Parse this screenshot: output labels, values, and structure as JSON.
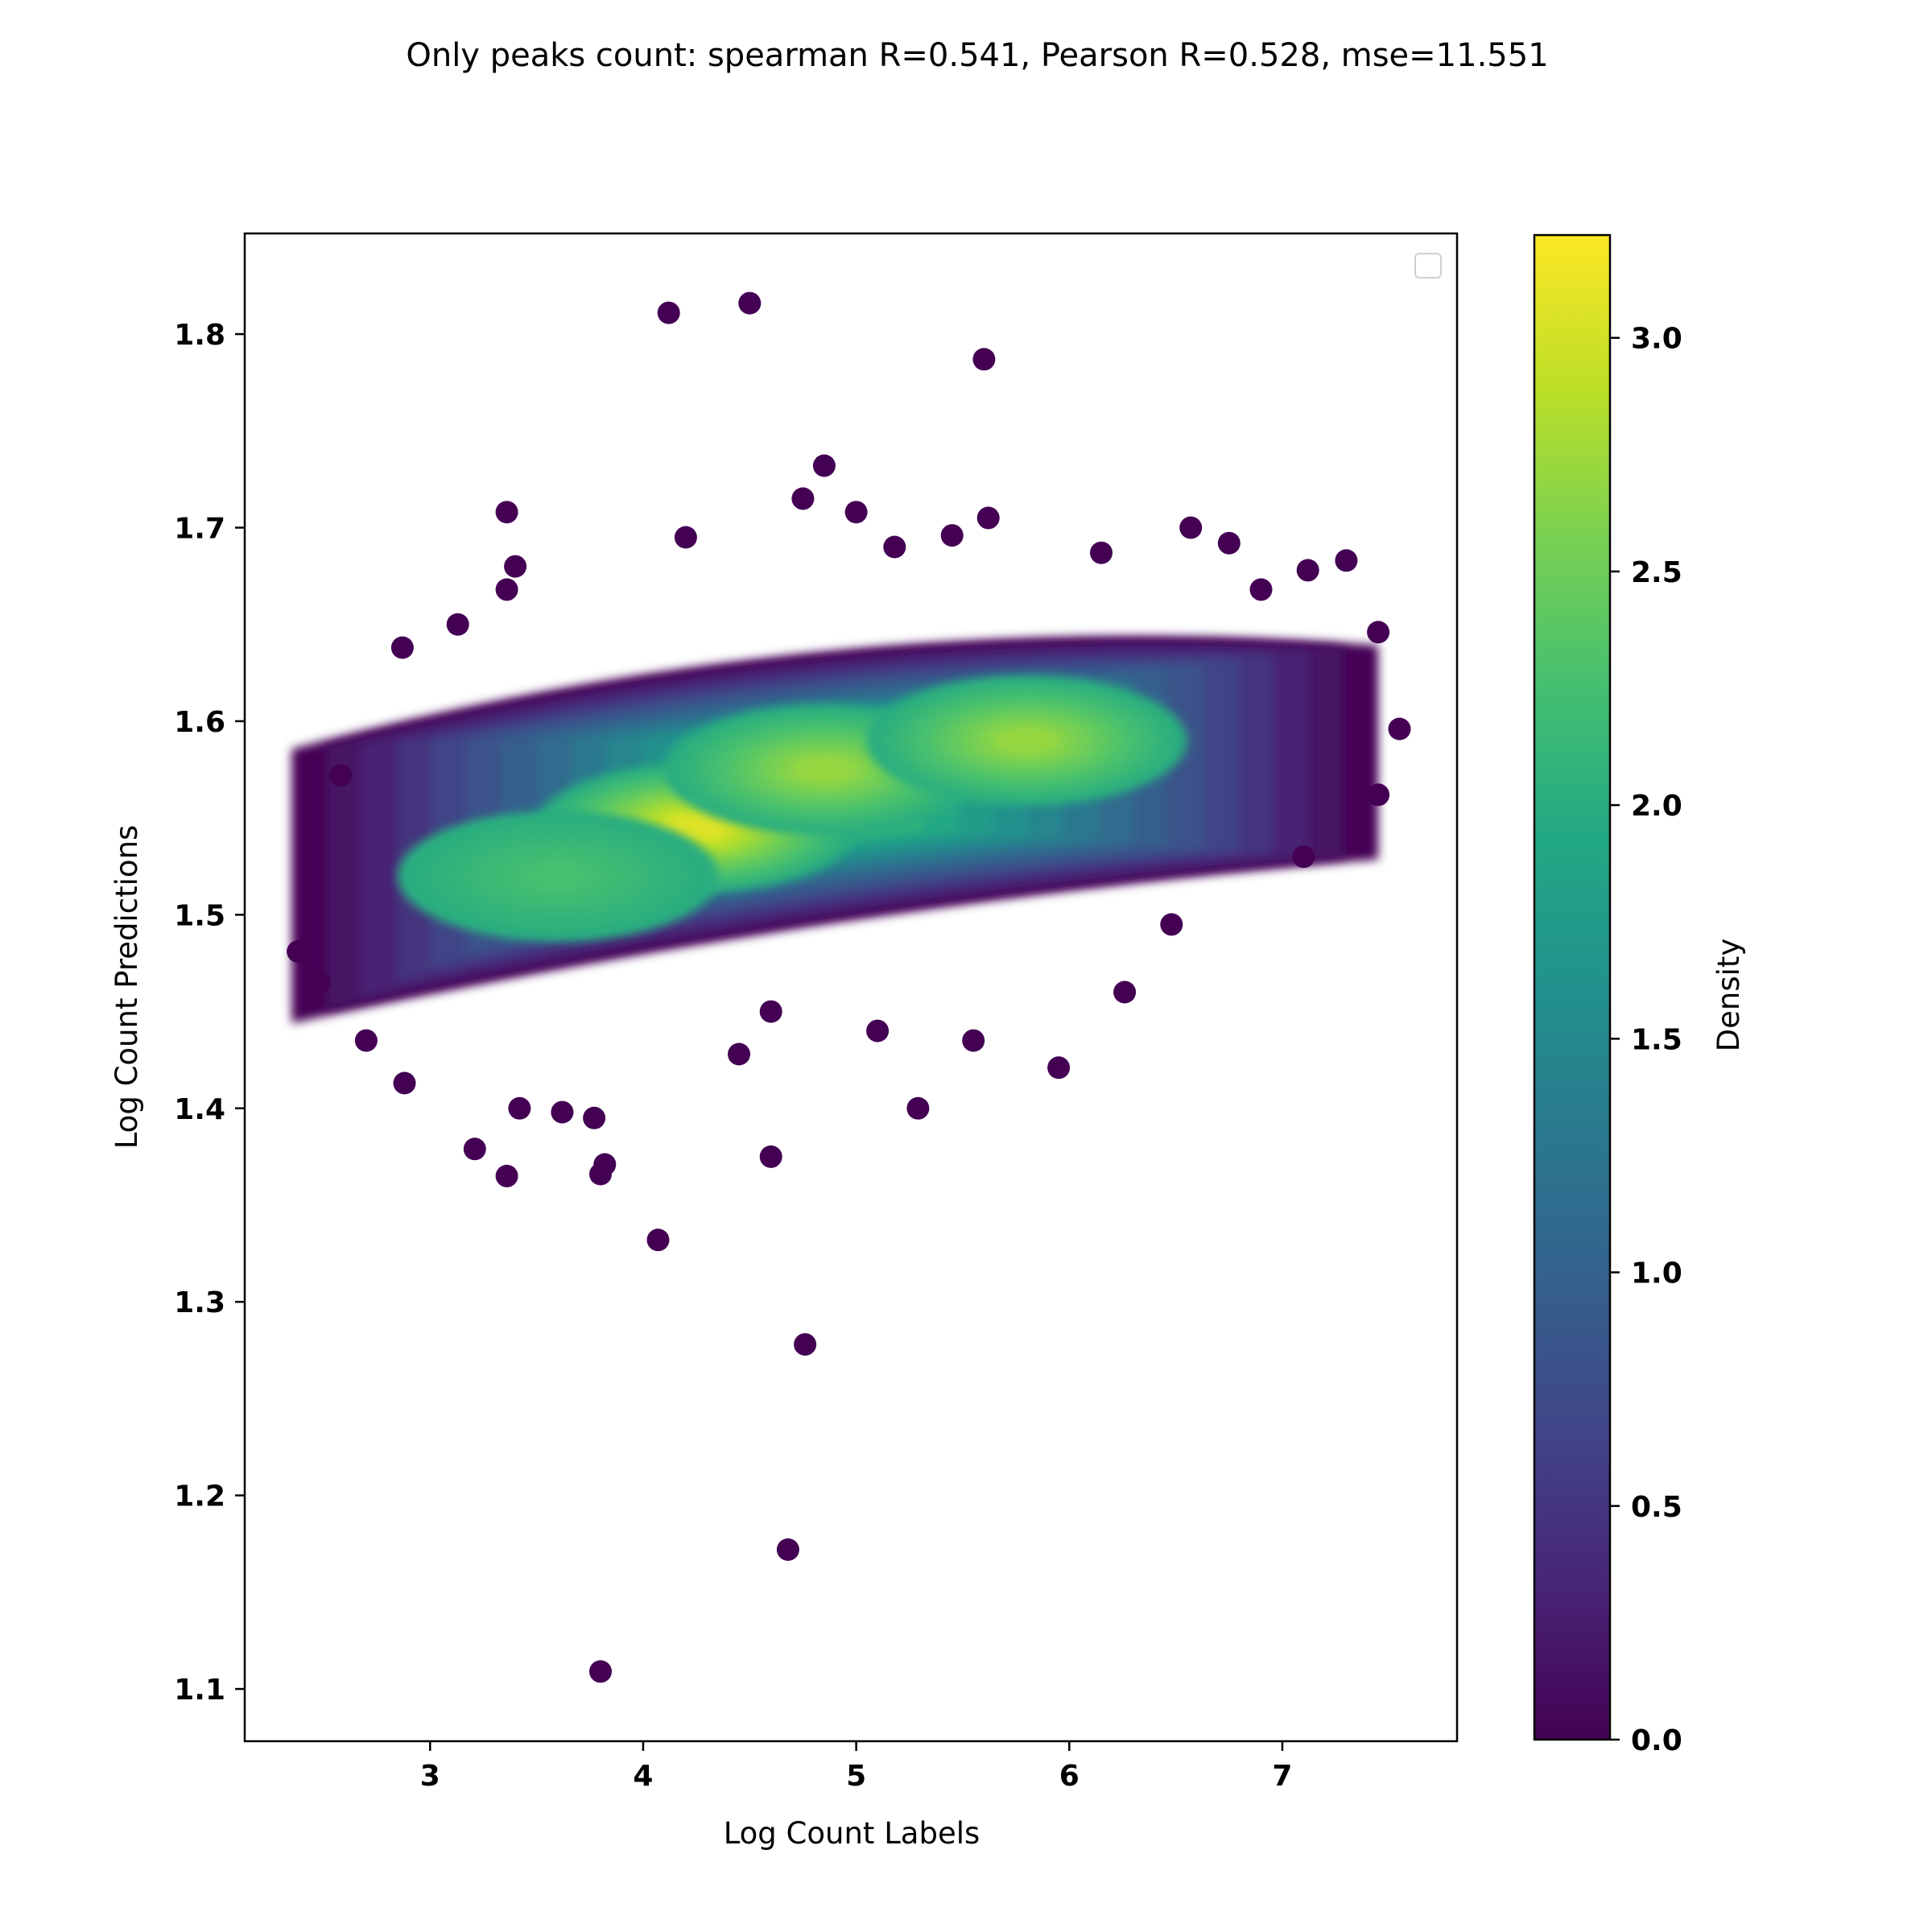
{
  "chart_data": {
    "type": "scatter",
    "title": "Only peaks count: spearman R=0.541, Pearson R=0.528, mse=11.551",
    "xlabel": "Log Count Labels",
    "ylabel": "Log Count Predictions",
    "xlim": [
      2.13,
      7.82
    ],
    "ylim": [
      1.073,
      1.852
    ],
    "x_ticks": [
      3,
      4,
      5,
      6,
      7
    ],
    "y_ticks": [
      1.1,
      1.2,
      1.3,
      1.4,
      1.5,
      1.6,
      1.7,
      1.8
    ],
    "x_tick_labels": [
      "3",
      "4",
      "5",
      "6",
      "7"
    ],
    "y_tick_labels": [
      "1.1",
      "1.2",
      "1.3",
      "1.4",
      "1.5",
      "1.6",
      "1.7",
      "1.8"
    ],
    "grid": false,
    "legend": "top-right",
    "legend_entries": [],
    "colorbar": {
      "label": "Density",
      "colormap": "viridis",
      "range": [
        0,
        3.22
      ],
      "ticks": [
        0.0,
        0.5,
        1.0,
        1.5,
        2.0,
        2.5,
        3.0
      ],
      "tick_labels": [
        "0.0",
        "0.5",
        "1.0",
        "1.5",
        "2.0",
        "2.5",
        "3.0"
      ]
    },
    "density_clusters": [
      {
        "x": 4.25,
        "y": 1.545,
        "peak": 3.2
      },
      {
        "x": 4.85,
        "y": 1.575,
        "peak": 2.8
      },
      {
        "x": 5.8,
        "y": 1.59,
        "peak": 2.8
      },
      {
        "x": 3.6,
        "y": 1.52,
        "peak": 2.3
      }
    ],
    "points": [
      {
        "x": 4.12,
        "y": 1.811
      },
      {
        "x": 4.5,
        "y": 1.816
      },
      {
        "x": 5.6,
        "y": 1.787
      },
      {
        "x": 4.85,
        "y": 1.732
      },
      {
        "x": 4.75,
        "y": 1.715
      },
      {
        "x": 5.0,
        "y": 1.708
      },
      {
        "x": 5.62,
        "y": 1.705
      },
      {
        "x": 3.36,
        "y": 1.708
      },
      {
        "x": 4.2,
        "y": 1.695
      },
      {
        "x": 5.45,
        "y": 1.696
      },
      {
        "x": 6.57,
        "y": 1.7
      },
      {
        "x": 3.4,
        "y": 1.68
      },
      {
        "x": 3.36,
        "y": 1.668
      },
      {
        "x": 7.3,
        "y": 1.683
      },
      {
        "x": 7.12,
        "y": 1.678
      },
      {
        "x": 7.45,
        "y": 1.646
      },
      {
        "x": 7.55,
        "y": 1.596
      },
      {
        "x": 7.45,
        "y": 1.562
      },
      {
        "x": 7.1,
        "y": 1.53
      },
      {
        "x": 2.38,
        "y": 1.481
      },
      {
        "x": 2.48,
        "y": 1.465
      },
      {
        "x": 2.88,
        "y": 1.413
      },
      {
        "x": 2.7,
        "y": 1.435
      },
      {
        "x": 3.42,
        "y": 1.4
      },
      {
        "x": 3.62,
        "y": 1.398
      },
      {
        "x": 3.77,
        "y": 1.395
      },
      {
        "x": 3.21,
        "y": 1.379
      },
      {
        "x": 3.36,
        "y": 1.365
      },
      {
        "x": 3.82,
        "y": 1.371
      },
      {
        "x": 3.8,
        "y": 1.366
      },
      {
        "x": 4.07,
        "y": 1.332
      },
      {
        "x": 4.6,
        "y": 1.375
      },
      {
        "x": 4.76,
        "y": 1.278
      },
      {
        "x": 4.68,
        "y": 1.172
      },
      {
        "x": 3.8,
        "y": 1.109
      },
      {
        "x": 5.29,
        "y": 1.4
      },
      {
        "x": 5.95,
        "y": 1.421
      },
      {
        "x": 5.55,
        "y": 1.435
      },
      {
        "x": 6.26,
        "y": 1.46
      },
      {
        "x": 6.48,
        "y": 1.495
      },
      {
        "x": 2.58,
        "y": 1.572
      },
      {
        "x": 3.13,
        "y": 1.65
      },
      {
        "x": 2.87,
        "y": 1.638
      },
      {
        "x": 4.45,
        "y": 1.428
      },
      {
        "x": 5.1,
        "y": 1.44
      },
      {
        "x": 6.9,
        "y": 1.668
      },
      {
        "x": 6.75,
        "y": 1.692
      },
      {
        "x": 5.18,
        "y": 1.69
      },
      {
        "x": 6.15,
        "y": 1.687
      },
      {
        "x": 4.6,
        "y": 1.45
      }
    ]
  }
}
